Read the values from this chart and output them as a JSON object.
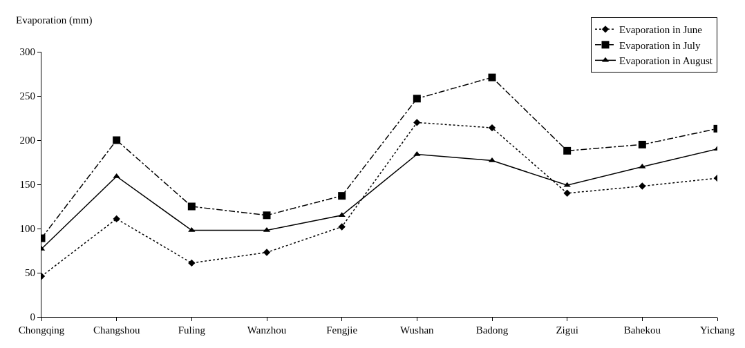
{
  "chart_data": {
    "type": "line",
    "ylabel": "Evaporation (mm)",
    "categories": [
      "Chongqing",
      "Changshou",
      "Fuling",
      "Wanzhou",
      "Fengjie",
      "Wushan",
      "Badong",
      "Zigui",
      "Bahekou",
      "Yichang"
    ],
    "series": [
      {
        "name": "Evaporation in June",
        "color": "#000000",
        "marker": "diamond",
        "line_style": "dotted",
        "values": [
          46,
          111,
          61,
          73,
          102,
          220,
          214,
          140,
          148,
          157
        ]
      },
      {
        "name": "Evaporation in July",
        "color": "#000000",
        "marker": "square",
        "line_style": "dashdot",
        "values": [
          89,
          200,
          125,
          115,
          137,
          247,
          271,
          188,
          195,
          213
        ]
      },
      {
        "name": "Evaporation in August",
        "color": "#000000",
        "marker": "triangle",
        "line_style": "solid",
        "values": [
          77,
          159,
          98,
          98,
          115,
          184,
          177,
          149,
          170,
          190
        ]
      }
    ],
    "ylim": [
      0,
      300
    ],
    "yticks": [
      0,
      50,
      100,
      150,
      200,
      250,
      300
    ],
    "legend": "top right"
  }
}
